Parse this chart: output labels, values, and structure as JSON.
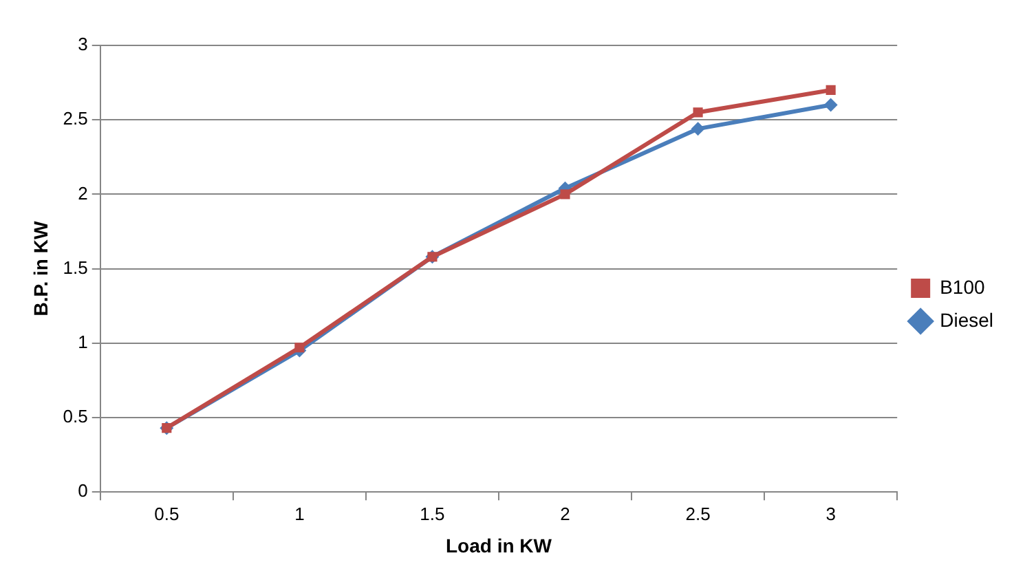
{
  "chart_data": {
    "type": "line",
    "xlabel": "Load in KW",
    "ylabel": "B.P. in KW",
    "categories": [
      "0.5",
      "1",
      "1.5",
      "2",
      "2.5",
      "3"
    ],
    "series": [
      {
        "name": "Diesel",
        "color": "#4a7ebb",
        "marker": "diamond",
        "values": [
          0.43,
          0.95,
          1.58,
          2.04,
          2.44,
          2.6
        ]
      },
      {
        "name": "B100",
        "color": "#be4b48",
        "marker": "square",
        "values": [
          0.43,
          0.97,
          1.58,
          2.0,
          2.55,
          2.7
        ]
      }
    ],
    "ylim": [
      0,
      3
    ],
    "yticks": [
      0,
      0.5,
      1,
      1.5,
      2,
      2.5,
      3
    ],
    "grid": "y",
    "legend": "right",
    "line_style": "solid"
  }
}
